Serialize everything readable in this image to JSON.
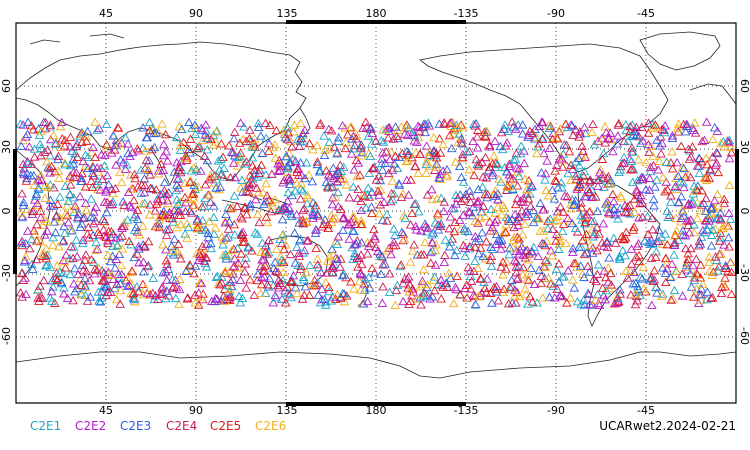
{
  "figure": {
    "caption": "UCARwet2.2024-02-21",
    "lon_tick_labels": [
      "45",
      "90",
      "135",
      "180",
      "-135",
      "-90",
      "-45"
    ],
    "lat_tick_labels": [
      "60",
      "30",
      "0",
      "-30",
      "-60"
    ]
  },
  "legend": {
    "items": [
      {
        "label": "C2E1",
        "color": "#1aa7c9"
      },
      {
        "label": "C2E2",
        "color": "#b31ac9"
      },
      {
        "label": "C2E3",
        "color": "#2a5de0"
      },
      {
        "label": "C2E4",
        "color": "#cc1a5a"
      },
      {
        "label": "C2E5",
        "color": "#e01818"
      },
      {
        "label": "C2E6",
        "color": "#f2b01a"
      }
    ]
  },
  "map": {
    "projection": "cylindrical equidistant",
    "lon_range": [
      0,
      360
    ],
    "lat_range": [
      -90,
      90
    ],
    "grid": "dotted",
    "marker": "triangle",
    "observation_lat_band": [
      -45,
      45
    ]
  }
}
